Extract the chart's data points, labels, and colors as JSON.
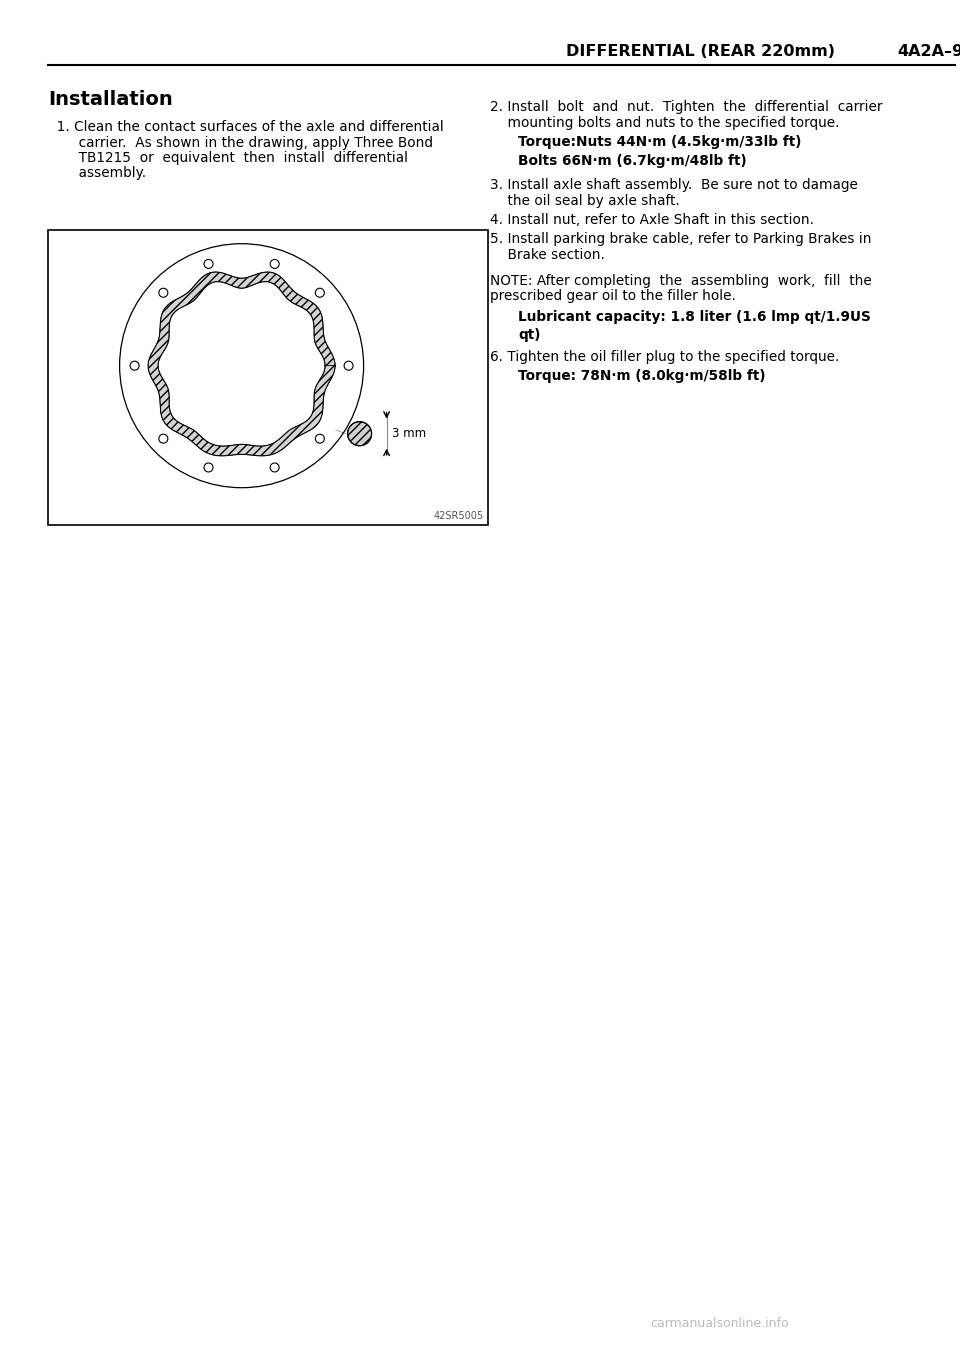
{
  "header_text": "DIFFERENTIAL (REAR 220mm)",
  "header_page": "4A2A–9",
  "section_title": "Installation",
  "diagram_label": "3 mm",
  "watermark": "carmanualsonline.info",
  "figure_code": "42SR5005",
  "bg_color": "#ffffff",
  "text_color": "#000000",
  "torque1_bold": "Torque:Nuts 44N·m (4.5kg·m/33lb ft)",
  "torque2_bold": "Bolts 66N·m (6.7kg·m/48lb ft)",
  "lubricant_bold": "Lubricant capacity: 1.8 liter (1.6 lmp qt/1.9US",
  "lubricant_bold2": "qt)",
  "torque3_bold": "Torque: 78N·m (8.0kg·m/58lb ft)"
}
